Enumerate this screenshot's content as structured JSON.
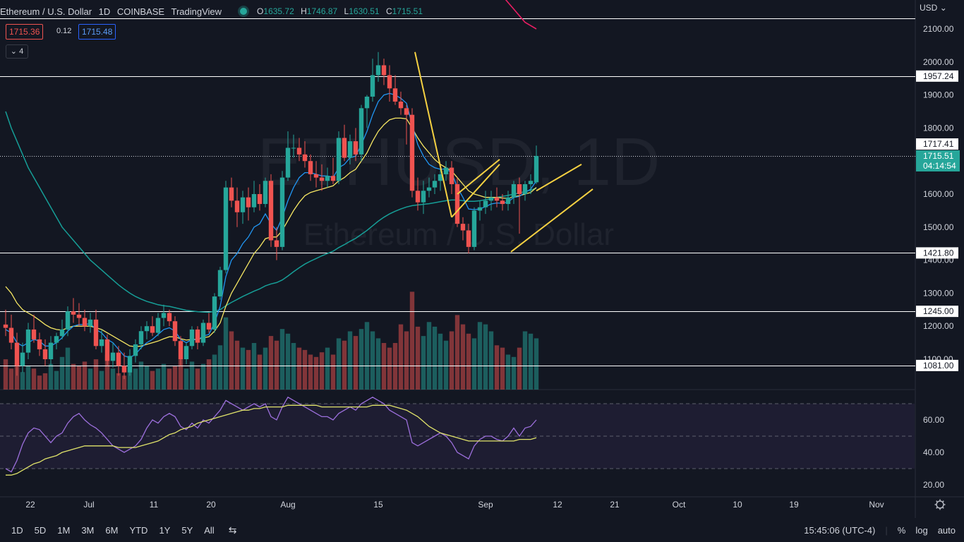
{
  "header": {
    "symbol_text": "Ethereum / U.S. Dollar",
    "interval": "1D",
    "exchange": "COINBASE",
    "platform": "TradingView",
    "status_color": "#26a69a",
    "ohlc": {
      "o_label": "O",
      "o": "1635.72",
      "h_label": "H",
      "h": "1746.87",
      "l_label": "L",
      "l": "1630.51",
      "c_label": "C",
      "c": "1715.51"
    },
    "sell_price": "1715.36",
    "spread": "0.12",
    "buy_price": "1715.48",
    "indicators_count": "4",
    "collapse_icon": "chevron-down-icon"
  },
  "watermark": {
    "line1": "ETHUSD, 1D",
    "line2": "Ethereum / U.S. Dollar"
  },
  "price_axis": {
    "currency": "USD",
    "ticks": [
      "2100.00",
      "2000.00",
      "1900.00",
      "1800.00",
      "1700.00",
      "1600.00",
      "1500.00",
      "1400.00",
      "1300.00",
      "1200.00",
      "1100.00"
    ],
    "tick_values": [
      2100,
      2000,
      1900,
      1800,
      1700,
      1600,
      1500,
      1400,
      1300,
      1200,
      1100
    ]
  },
  "rsi_axis": {
    "ticks": [
      "60.00",
      "40.00",
      "20.00"
    ],
    "tick_values": [
      60,
      40,
      20
    ]
  },
  "time_axis": {
    "labels": [
      "22",
      "Jul",
      "11",
      "20",
      "Aug",
      "15",
      "Sep",
      "12",
      "21",
      "Oct",
      "10",
      "19",
      "Nov"
    ]
  },
  "chart_data": {
    "type": "candlestick",
    "price_range": [
      1030,
      2130
    ],
    "horizontal_levels": [
      {
        "value": 2131,
        "label": ""
      },
      {
        "value": 1957.24,
        "label": "1957.24"
      },
      {
        "value": 1421.8,
        "label": "1421.80"
      },
      {
        "value": 1245.0,
        "label": "1245.00"
      },
      {
        "value": 1081.0,
        "label": "1081.00"
      }
    ],
    "current_price": {
      "value": 1715.51,
      "label": "1715.51",
      "countdown": "04:14:54",
      "color": "#26a69a"
    },
    "high_marker": {
      "value": 1717.41,
      "label": "1717.41"
    },
    "colors": {
      "up": "#26a69a",
      "down": "#ef5350",
      "ema_fast": "#2196f3",
      "ema_mid": "#f5e663",
      "ema_slow": "#169e97",
      "ema_long": "#e91e63",
      "pattern": "#f5d142"
    },
    "candles": [
      [
        1205,
        1250,
        1170,
        1195
      ],
      [
        1195,
        1235,
        1130,
        1150
      ],
      [
        1150,
        1180,
        1050,
        1080
      ],
      [
        1080,
        1150,
        1060,
        1120
      ],
      [
        1120,
        1210,
        1100,
        1190
      ],
      [
        1190,
        1235,
        1150,
        1160
      ],
      [
        1160,
        1180,
        1110,
        1130
      ],
      [
        1130,
        1160,
        1080,
        1100
      ],
      [
        1100,
        1170,
        1080,
        1150
      ],
      [
        1150,
        1180,
        1130,
        1170
      ],
      [
        1170,
        1220,
        1160,
        1190
      ],
      [
        1190,
        1260,
        1170,
        1245
      ],
      [
        1245,
        1285,
        1210,
        1235
      ],
      [
        1235,
        1270,
        1200,
        1225
      ],
      [
        1225,
        1250,
        1185,
        1200
      ],
      [
        1200,
        1240,
        1180,
        1220
      ],
      [
        1220,
        1250,
        1130,
        1140
      ],
      [
        1140,
        1190,
        1120,
        1160
      ],
      [
        1160,
        1175,
        1080,
        1095
      ],
      [
        1095,
        1150,
        1075,
        1120
      ],
      [
        1120,
        1140,
        1050,
        1080
      ],
      [
        1080,
        1120,
        1040,
        1060
      ],
      [
        1060,
        1130,
        1050,
        1110
      ],
      [
        1110,
        1160,
        1090,
        1145
      ],
      [
        1145,
        1200,
        1130,
        1185
      ],
      [
        1185,
        1215,
        1160,
        1200
      ],
      [
        1200,
        1230,
        1170,
        1180
      ],
      [
        1180,
        1240,
        1170,
        1225
      ],
      [
        1225,
        1265,
        1200,
        1240
      ],
      [
        1240,
        1250,
        1200,
        1215
      ],
      [
        1215,
        1230,
        1140,
        1155
      ],
      [
        1155,
        1170,
        1080,
        1100
      ],
      [
        1100,
        1150,
        1085,
        1140
      ],
      [
        1140,
        1200,
        1130,
        1190
      ],
      [
        1190,
        1200,
        1130,
        1150
      ],
      [
        1150,
        1220,
        1140,
        1210
      ],
      [
        1210,
        1240,
        1180,
        1190
      ],
      [
        1190,
        1300,
        1180,
        1290
      ],
      [
        1290,
        1380,
        1280,
        1370
      ],
      [
        1370,
        1640,
        1360,
        1620
      ],
      [
        1620,
        1650,
        1560,
        1580
      ],
      [
        1580,
        1620,
        1500,
        1545
      ],
      [
        1545,
        1610,
        1510,
        1590
      ],
      [
        1590,
        1620,
        1520,
        1560
      ],
      [
        1560,
        1640,
        1545,
        1600
      ],
      [
        1600,
        1630,
        1550,
        1570
      ],
      [
        1570,
        1650,
        1560,
        1640
      ],
      [
        1640,
        1660,
        1440,
        1460
      ],
      [
        1460,
        1500,
        1400,
        1440
      ],
      [
        1440,
        1670,
        1430,
        1650
      ],
      [
        1650,
        1790,
        1640,
        1740
      ],
      [
        1740,
        1780,
        1710,
        1740
      ],
      [
        1740,
        1770,
        1700,
        1720
      ],
      [
        1720,
        1760,
        1680,
        1700
      ],
      [
        1700,
        1720,
        1640,
        1660
      ],
      [
        1660,
        1700,
        1620,
        1650
      ],
      [
        1650,
        1690,
        1610,
        1640
      ],
      [
        1640,
        1680,
        1620,
        1655
      ],
      [
        1655,
        1710,
        1630,
        1640
      ],
      [
        1640,
        1790,
        1630,
        1770
      ],
      [
        1770,
        1810,
        1700,
        1710
      ],
      [
        1710,
        1780,
        1690,
        1760
      ],
      [
        1760,
        1800,
        1700,
        1720
      ],
      [
        1720,
        1870,
        1700,
        1860
      ],
      [
        1860,
        1900,
        1800,
        1895
      ],
      [
        1895,
        2010,
        1880,
        1960
      ],
      [
        1960,
        2030,
        1940,
        1990
      ],
      [
        1990,
        2010,
        1930,
        1960
      ],
      [
        1960,
        1990,
        1880,
        1920
      ],
      [
        1920,
        1960,
        1870,
        1880
      ],
      [
        1880,
        1910,
        1840,
        1860
      ],
      [
        1860,
        1870,
        1750,
        1840
      ],
      [
        1840,
        1860,
        1590,
        1610
      ],
      [
        1610,
        1650,
        1550,
        1575
      ],
      [
        1575,
        1640,
        1540,
        1610
      ],
      [
        1610,
        1650,
        1590,
        1620
      ],
      [
        1620,
        1660,
        1600,
        1640
      ],
      [
        1640,
        1680,
        1610,
        1660
      ],
      [
        1660,
        1700,
        1640,
        1680
      ],
      [
        1680,
        1700,
        1600,
        1630
      ],
      [
        1630,
        1650,
        1500,
        1510
      ],
      [
        1510,
        1530,
        1460,
        1490
      ],
      [
        1490,
        1510,
        1420,
        1440
      ],
      [
        1440,
        1560,
        1430,
        1550
      ],
      [
        1550,
        1580,
        1520,
        1560
      ],
      [
        1560,
        1610,
        1540,
        1580
      ],
      [
        1580,
        1610,
        1550,
        1590
      ],
      [
        1590,
        1620,
        1560,
        1580
      ],
      [
        1580,
        1600,
        1550,
        1570
      ],
      [
        1570,
        1610,
        1550,
        1590
      ],
      [
        1590,
        1640,
        1570,
        1630
      ],
      [
        1630,
        1650,
        1480,
        1600
      ],
      [
        1600,
        1640,
        1580,
        1630
      ],
      [
        1630,
        1660,
        1600,
        1640
      ],
      [
        1635.72,
        1746.87,
        1630.51,
        1715.51
      ]
    ],
    "volume": [
      0.26,
      0.18,
      0.22,
      0.15,
      0.2,
      0.18,
      0.12,
      0.14,
      0.22,
      0.16,
      0.28,
      0.36,
      0.22,
      0.2,
      0.24,
      0.18,
      0.26,
      0.16,
      0.3,
      0.18,
      0.14,
      0.12,
      0.2,
      0.18,
      0.24,
      0.2,
      0.16,
      0.18,
      0.22,
      0.18,
      0.2,
      0.26,
      0.18,
      0.24,
      0.18,
      0.22,
      0.26,
      0.3,
      0.38,
      0.62,
      0.5,
      0.42,
      0.36,
      0.34,
      0.4,
      0.3,
      0.36,
      0.46,
      0.42,
      0.52,
      0.48,
      0.4,
      0.36,
      0.34,
      0.3,
      0.28,
      0.32,
      0.36,
      0.3,
      0.44,
      0.42,
      0.5,
      0.46,
      0.52,
      0.58,
      0.5,
      0.44,
      0.4,
      0.36,
      0.4,
      0.56,
      0.5,
      0.84,
      0.54,
      0.46,
      0.58,
      0.54,
      0.48,
      0.42,
      0.5,
      0.64,
      0.56,
      0.48,
      0.44,
      0.58,
      0.56,
      0.5,
      0.38,
      0.36,
      0.3,
      0.28,
      0.36,
      0.5,
      0.48,
      0.44
    ],
    "ema_fast": [
      1190,
      1180,
      1150,
      1140,
      1150,
      1160,
      1155,
      1140,
      1140,
      1150,
      1165,
      1185,
      1200,
      1205,
      1205,
      1208,
      1190,
      1180,
      1160,
      1150,
      1130,
      1110,
      1105,
      1115,
      1135,
      1150,
      1160,
      1175,
      1190,
      1195,
      1185,
      1160,
      1150,
      1160,
      1158,
      1170,
      1175,
      1210,
      1260,
      1350,
      1400,
      1420,
      1450,
      1470,
      1500,
      1510,
      1540,
      1510,
      1490,
      1530,
      1580,
      1620,
      1650,
      1665,
      1665,
      1660,
      1655,
      1655,
      1650,
      1680,
      1690,
      1710,
      1715,
      1750,
      1790,
      1840,
      1880,
      1900,
      1905,
      1900,
      1890,
      1875,
      1810,
      1750,
      1715,
      1690,
      1680,
      1675,
      1676,
      1665,
      1620,
      1590,
      1555,
      1553,
      1555,
      1562,
      1570,
      1573,
      1572,
      1576,
      1590,
      1593,
      1605,
      1615,
      1640
    ],
    "ema_mid": [
      1320,
      1300,
      1270,
      1250,
      1240,
      1230,
      1218,
      1205,
      1195,
      1190,
      1188,
      1195,
      1200,
      1200,
      1200,
      1200,
      1195,
      1190,
      1180,
      1170,
      1160,
      1150,
      1140,
      1138,
      1140,
      1145,
      1150,
      1155,
      1162,
      1168,
      1168,
      1162,
      1158,
      1160,
      1160,
      1165,
      1168,
      1185,
      1210,
      1260,
      1300,
      1330,
      1360,
      1390,
      1420,
      1440,
      1465,
      1470,
      1470,
      1490,
      1520,
      1550,
      1575,
      1595,
      1605,
      1610,
      1615,
      1620,
      1625,
      1640,
      1650,
      1665,
      1675,
      1700,
      1725,
      1760,
      1790,
      1810,
      1825,
      1830,
      1830,
      1828,
      1800,
      1770,
      1745,
      1725,
      1705,
      1690,
      1680,
      1670,
      1650,
      1630,
      1610,
      1600,
      1595,
      1590,
      1590,
      1590,
      1588,
      1587,
      1592,
      1595,
      1600,
      1605,
      1620
    ],
    "ema_slow": [
      1850,
      1800,
      1760,
      1720,
      1680,
      1650,
      1620,
      1590,
      1560,
      1530,
      1500,
      1480,
      1460,
      1440,
      1420,
      1400,
      1385,
      1370,
      1355,
      1340,
      1325,
      1312,
      1300,
      1290,
      1282,
      1275,
      1270,
      1265,
      1262,
      1260,
      1256,
      1252,
      1248,
      1246,
      1244,
      1243,
      1242,
      1245,
      1250,
      1262,
      1272,
      1281,
      1290,
      1298,
      1306,
      1313,
      1322,
      1328,
      1332,
      1340,
      1352,
      1365,
      1377,
      1388,
      1397,
      1405,
      1413,
      1420,
      1427,
      1438,
      1447,
      1457,
      1466,
      1478,
      1490,
      1504,
      1518,
      1530,
      1540,
      1548,
      1555,
      1561,
      1565,
      1567,
      1569,
      1571,
      1574,
      1577,
      1580,
      1582,
      1582,
      1580,
      1578,
      1578,
      1580,
      1583,
      1586,
      1590,
      1593,
      1596,
      1600,
      1603,
      1608,
      1612,
      1618
    ],
    "ema_long": [
      2200,
      2180,
      2160,
      2140,
      2120,
      2110,
      2100
    ],
    "ema_long_start_index": 88,
    "patterns": [
      {
        "type": "line",
        "p1": [
          72.5,
          2030
        ],
        "p2": [
          79,
          1530
        ]
      },
      {
        "type": "line",
        "p1": [
          79,
          1530
        ],
        "p2": [
          87.5,
          1690
        ]
      },
      {
        "type": "line",
        "p1": [
          80,
          1600
        ],
        "p2": [
          87.5,
          1705
        ]
      },
      {
        "type": "line",
        "p1": [
          89.5,
          1425
        ],
        "p2": [
          104,
          1615
        ]
      },
      {
        "type": "line",
        "p1": [
          94,
          1610
        ],
        "p2": [
          102,
          1690
        ]
      }
    ],
    "rsi": [
      30,
      28,
      35,
      45,
      52,
      55,
      54,
      50,
      46,
      50,
      52,
      58,
      62,
      64,
      60,
      57,
      55,
      52,
      48,
      44,
      42,
      40,
      42,
      44,
      48,
      55,
      60,
      58,
      62,
      64,
      62,
      56,
      54,
      58,
      55,
      60,
      58,
      62,
      66,
      72,
      70,
      68,
      66,
      68,
      70,
      68,
      70,
      62,
      60,
      68,
      74,
      72,
      70,
      68,
      66,
      64,
      62,
      62,
      60,
      64,
      66,
      68,
      66,
      70,
      72,
      74,
      72,
      70,
      66,
      64,
      62,
      60,
      46,
      44,
      46,
      48,
      50,
      52,
      50,
      46,
      40,
      38,
      36,
      44,
      48,
      50,
      50,
      48,
      47,
      50,
      55,
      50,
      55,
      56,
      60
    ],
    "rsi_ma": [
      26,
      26,
      27,
      29,
      31,
      33,
      34,
      36,
      37,
      38,
      40,
      41,
      42,
      43,
      44,
      44,
      44,
      44,
      44,
      44,
      43,
      43,
      43,
      43,
      44,
      45,
      46,
      47,
      49,
      51,
      52,
      54,
      55,
      56,
      58,
      59,
      60,
      61,
      62,
      63,
      64,
      65,
      66,
      66,
      67,
      67,
      68,
      68,
      68,
      68,
      69,
      69,
      69,
      69,
      69,
      69,
      68,
      68,
      68,
      68,
      68,
      68,
      68,
      68,
      68,
      69,
      69,
      69,
      69,
      68,
      67,
      66,
      64,
      62,
      59,
      56,
      54,
      52,
      51,
      50,
      49,
      48,
      47,
      47,
      47,
      47,
      47,
      47,
      47,
      47,
      47,
      48,
      48,
      48,
      49
    ],
    "rsi_levels": [
      70,
      50,
      30
    ],
    "rsi_range": [
      15,
      75
    ]
  },
  "bottom_bar": {
    "timeframes": [
      "1D",
      "5D",
      "1M",
      "3M",
      "6M",
      "YTD",
      "1Y",
      "5Y",
      "All"
    ],
    "calendar_icon": "calendar-range-icon",
    "clock": "15:45:06 (UTC-4)",
    "percent": "%",
    "log": "log",
    "auto": "auto",
    "settings_icon": "gear-icon"
  }
}
